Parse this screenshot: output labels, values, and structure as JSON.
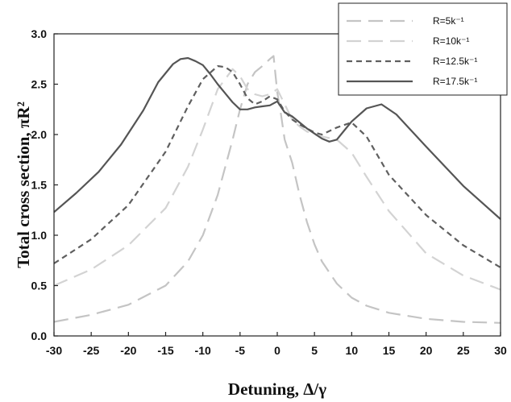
{
  "chart_data": {
    "type": "line",
    "title": "",
    "xlabel": "Detuning, Δ/γ",
    "ylabel": "Total cross section, πR²",
    "xlim": [
      -30,
      30
    ],
    "ylim": [
      0,
      3.0
    ],
    "xticks": [
      "-30",
      "-25",
      "-20",
      "-15",
      "-10",
      "-5",
      "0",
      "5",
      "10",
      "15",
      "20",
      "25",
      "30"
    ],
    "yticks": [
      "0.0",
      "0.5",
      "1.0",
      "1.5",
      "2.0",
      "2.5",
      "3.0"
    ],
    "grid": false,
    "legend_position": "top-right",
    "series": [
      {
        "name": "R=5k⁻¹",
        "color": "#c4c4c4",
        "dash": "long-dash",
        "x": [
          -30,
          -25,
          -20,
          -15,
          -12,
          -10,
          -8,
          -6,
          -5,
          -4,
          -3,
          -2,
          -1,
          -0.5,
          0,
          0.5,
          1,
          2,
          3,
          4,
          5,
          6,
          8,
          10,
          12,
          15,
          20,
          25,
          30
        ],
        "y": [
          0.14,
          0.21,
          0.31,
          0.5,
          0.74,
          1.0,
          1.4,
          1.95,
          2.25,
          2.5,
          2.62,
          2.68,
          2.75,
          2.78,
          2.42,
          2.2,
          1.95,
          1.72,
          1.4,
          1.13,
          0.91,
          0.74,
          0.52,
          0.38,
          0.3,
          0.23,
          0.17,
          0.14,
          0.13
        ]
      },
      {
        "name": "R=10k⁻¹",
        "color": "#d3d3d3",
        "dash": "long-dash",
        "x": [
          -30,
          -25,
          -20,
          -15,
          -12,
          -10,
          -8,
          -6,
          -5,
          -4,
          -3,
          -2,
          -1,
          0,
          1,
          2,
          3,
          4,
          5,
          6,
          8,
          10,
          12,
          15,
          20,
          25,
          30
        ],
        "y": [
          0.5,
          0.66,
          0.9,
          1.27,
          1.68,
          2.05,
          2.45,
          2.65,
          2.58,
          2.45,
          2.4,
          2.38,
          2.4,
          2.45,
          2.3,
          2.15,
          2.08,
          2.03,
          2.0,
          1.98,
          1.95,
          1.82,
          1.58,
          1.24,
          0.82,
          0.6,
          0.46
        ]
      },
      {
        "name": "R=12.5k⁻¹",
        "color": "#5f5f5f",
        "dash": "short-dash",
        "x": [
          -30,
          -25,
          -20,
          -15,
          -12,
          -10,
          -8,
          -7,
          -6,
          -5,
          -4,
          -3,
          -2,
          -1,
          0,
          1,
          2,
          3,
          4,
          5,
          6,
          8,
          10,
          12,
          15,
          20,
          25,
          30
        ],
        "y": [
          0.72,
          0.96,
          1.3,
          1.83,
          2.28,
          2.55,
          2.68,
          2.67,
          2.62,
          2.5,
          2.36,
          2.3,
          2.33,
          2.38,
          2.35,
          2.23,
          2.15,
          2.1,
          2.06,
          2.02,
          2.0,
          2.07,
          2.12,
          1.98,
          1.6,
          1.2,
          0.9,
          0.68
        ]
      },
      {
        "name": "R=17.5k⁻¹",
        "color": "#555555",
        "dash": "solid",
        "x": [
          -30,
          -27,
          -24,
          -21,
          -18,
          -16,
          -14,
          -13,
          -12,
          -11,
          -10,
          -9,
          -8,
          -7,
          -6,
          -5,
          -4,
          -3,
          -2,
          -1,
          0,
          1,
          2,
          3,
          4,
          5,
          6,
          7,
          8,
          9,
          10,
          12,
          14,
          16,
          20,
          25,
          30
        ],
        "y": [
          1.23,
          1.42,
          1.63,
          1.9,
          2.24,
          2.52,
          2.7,
          2.75,
          2.76,
          2.73,
          2.69,
          2.6,
          2.5,
          2.41,
          2.32,
          2.25,
          2.25,
          2.27,
          2.28,
          2.29,
          2.33,
          2.22,
          2.18,
          2.12,
          2.06,
          2.01,
          1.96,
          1.93,
          1.95,
          2.04,
          2.13,
          2.26,
          2.3,
          2.2,
          1.88,
          1.49,
          1.16
        ]
      }
    ]
  }
}
